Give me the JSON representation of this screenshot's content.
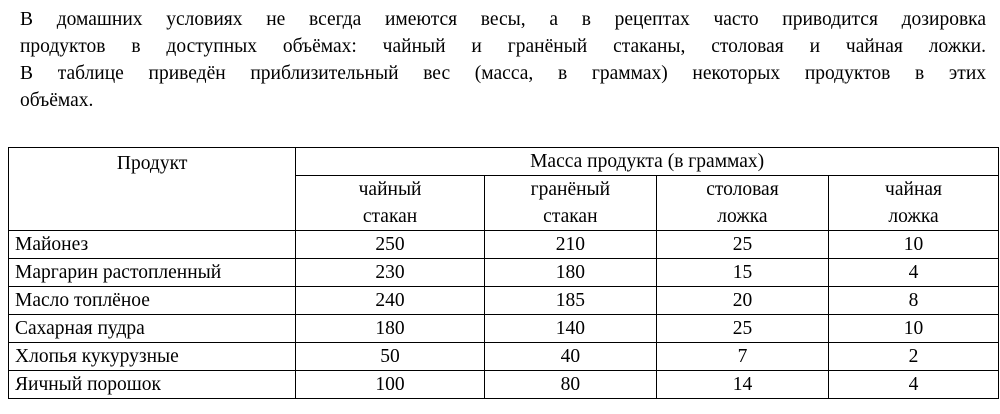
{
  "paragraph": {
    "lines": [
      "В домашних условиях не всегда имеются весы, а в рецептах часто приводится дозировка",
      "продуктов в доступных объёмах: чайный и гранёный стаканы, столовая и чайная ложки.",
      "В таблице приведён приблизительный вес (масса, в граммах) некоторых продуктов в этих",
      "объёмах."
    ]
  },
  "table": {
    "product_header": "Продукт",
    "group_header": "Масса продукта (в граммах)",
    "columns": [
      {
        "line1": "чайный",
        "line2": "стакан"
      },
      {
        "line1": "гранёный",
        "line2": "стакан"
      },
      {
        "line1": "столовая",
        "line2": "ложка"
      },
      {
        "line1": "чайная",
        "line2": "ложка"
      }
    ],
    "rows": [
      {
        "product": "Майонез",
        "values": [
          "250",
          "210",
          "25",
          "10"
        ]
      },
      {
        "product": "Маргарин растопленный",
        "values": [
          "230",
          "180",
          "15",
          "4"
        ]
      },
      {
        "product": "Масло топлёное",
        "values": [
          "240",
          "185",
          "20",
          "8"
        ]
      },
      {
        "product": "Сахарная пудра",
        "values": [
          "180",
          "140",
          "25",
          "10"
        ]
      },
      {
        "product": "Хлопья кукурузные",
        "values": [
          "50",
          "40",
          "7",
          "2"
        ]
      },
      {
        "product": "Яичный порошок",
        "values": [
          "100",
          "80",
          "14",
          "4"
        ]
      }
    ]
  }
}
